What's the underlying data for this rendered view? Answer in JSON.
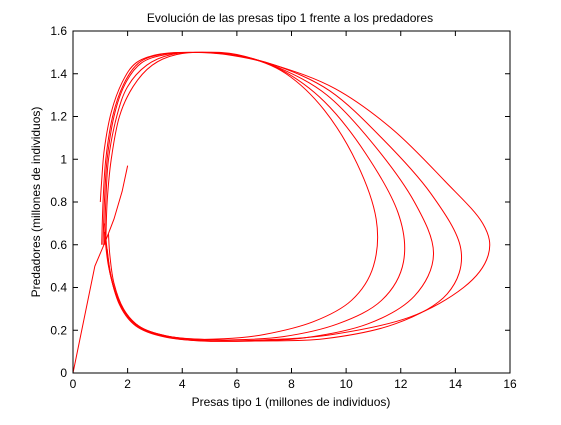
{
  "chart_data": {
    "type": "line",
    "title": "Evolución de las presas tipo 1 frente a los predadores",
    "xlabel": "Presas tipo 1 (millones de individuos)",
    "ylabel": "Predadores (millones de individuos)",
    "xlim": [
      0,
      16
    ],
    "ylim": [
      0,
      1.6
    ],
    "xticks": [
      "0",
      "2",
      "4",
      "6",
      "8",
      "10",
      "12",
      "14",
      "16"
    ],
    "yticks": [
      "0",
      "0.2",
      "0.4",
      "0.6",
      "0.8",
      "1",
      "1.2",
      "1.4",
      "1.6"
    ],
    "grid": false,
    "line_color": "#ff0000",
    "series": [
      {
        "x": [
          0.0,
          0.8,
          1.2,
          1.5,
          1.8,
          2.0
        ],
        "y": [
          0.0,
          0.5,
          0.62,
          0.72,
          0.85,
          0.97
        ]
      },
      {
        "x": [
          1.2,
          1.25,
          1.4,
          1.7,
          2.2,
          2.9,
          3.8,
          5.0,
          6.3,
          7.8,
          9.2,
          10.4,
          11.1,
          11.0,
          10.2,
          8.8,
          7.0,
          5.5,
          4.2,
          3.2,
          2.4,
          1.85,
          1.5,
          1.35,
          1.3
        ],
        "y": [
          0.6,
          0.8,
          1.0,
          1.2,
          1.34,
          1.44,
          1.49,
          1.5,
          1.48,
          1.4,
          1.23,
          0.98,
          0.72,
          0.5,
          0.34,
          0.24,
          0.18,
          0.16,
          0.16,
          0.18,
          0.22,
          0.3,
          0.42,
          0.55,
          0.65
        ]
      },
      {
        "x": [
          1.15,
          1.2,
          1.3,
          1.6,
          2.0,
          2.7,
          3.6,
          4.7,
          6.0,
          7.6,
          9.2,
          10.7,
          11.9,
          12.1,
          11.3,
          9.7,
          7.7,
          5.8,
          4.3,
          3.1,
          2.3,
          1.75,
          1.4,
          1.25
        ],
        "y": [
          0.6,
          0.8,
          1.0,
          1.2,
          1.34,
          1.44,
          1.49,
          1.5,
          1.49,
          1.42,
          1.27,
          1.03,
          0.75,
          0.52,
          0.34,
          0.23,
          0.17,
          0.155,
          0.16,
          0.18,
          0.23,
          0.32,
          0.45,
          0.58
        ]
      },
      {
        "x": [
          1.1,
          1.15,
          1.25,
          1.5,
          1.9,
          2.5,
          3.4,
          4.5,
          5.9,
          7.5,
          9.3,
          11.0,
          12.5,
          13.2,
          12.5,
          10.8,
          8.5,
          6.3,
          4.5,
          3.2,
          2.3,
          1.7,
          1.35,
          1.2
        ],
        "y": [
          0.6,
          0.8,
          1.0,
          1.2,
          1.35,
          1.45,
          1.49,
          1.5,
          1.49,
          1.43,
          1.3,
          1.07,
          0.8,
          0.56,
          0.36,
          0.23,
          0.165,
          0.15,
          0.155,
          0.18,
          0.23,
          0.33,
          0.47,
          0.62
        ]
      },
      {
        "x": [
          1.05,
          1.1,
          1.2,
          1.45,
          1.85,
          2.4,
          3.2,
          4.3,
          5.7,
          7.4,
          9.4,
          11.3,
          13.1,
          14.2,
          13.7,
          11.8,
          9.2,
          6.8,
          4.7,
          3.2,
          2.25,
          1.65,
          1.3,
          1.15
        ],
        "y": [
          0.6,
          0.8,
          1.0,
          1.2,
          1.35,
          1.45,
          1.49,
          1.5,
          1.49,
          1.44,
          1.32,
          1.1,
          0.84,
          0.58,
          0.37,
          0.23,
          0.16,
          0.15,
          0.15,
          0.175,
          0.23,
          0.34,
          0.5,
          0.66
        ]
      },
      {
        "x": [
          1.0,
          1.05,
          1.15,
          1.4,
          1.8,
          2.3,
          3.1,
          4.2,
          5.6,
          7.4,
          9.6,
          11.7,
          13.6,
          15.0,
          15.2,
          14.3,
          12.3,
          9.5,
          7.0,
          4.8,
          3.3,
          2.3,
          1.7,
          1.35,
          1.15
        ],
        "y": [
          0.8,
          0.9,
          1.05,
          1.22,
          1.36,
          1.45,
          1.49,
          1.5,
          1.49,
          1.44,
          1.33,
          1.14,
          0.9,
          0.7,
          0.55,
          0.4,
          0.26,
          0.18,
          0.155,
          0.15,
          0.17,
          0.22,
          0.32,
          0.48,
          0.7
        ]
      }
    ]
  }
}
